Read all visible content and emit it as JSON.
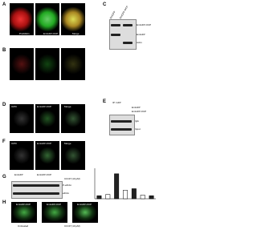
{
  "panels": [
    {
      "letter": "A",
      "labels": [
        "Prohibitin",
        "EmGFP-OCP",
        "Merge"
      ]
    },
    {
      "letter": "B",
      "labels": [
        "Prohibitin",
        "EmGFP-OCP",
        "Merge"
      ]
    },
    {
      "letter": "C",
      "columns": [
        "EmGFP",
        "EmGFP-OCP"
      ],
      "rows": [
        "EmGFP-OCP",
        "EmGFP",
        "Actin"
      ]
    },
    {
      "letter": "D",
      "labels": [
        "ICP0",
        "EmGFP-OCP",
        "Merge"
      ]
    },
    {
      "letter": "E",
      "header": "IP: GFP",
      "columns": [
        "EmGFP",
        "EmGFP-OCP"
      ],
      "rows": [
        "IgG",
        "Input"
      ]
    },
    {
      "letter": "F",
      "labels": [
        "ICP0",
        "EmGFP-OCP",
        "Merge"
      ]
    },
    {
      "letter": "G",
      "groups": [
        "EmGFP",
        "EmGFP-OCP"
      ],
      "treatment": "CCCP (10 µM)",
      "rows": [
        "P-eIF2α",
        "eIF2α"
      ],
      "chart": {
        "values": [
          1,
          1.4,
          8.2,
          2.8,
          3.3,
          1.2,
          1
        ],
        "ylim": [
          0,
          10
        ]
      }
    },
    {
      "letter": "H",
      "labels": [
        "EmGFP-OCP",
        "EmGFP-OCP",
        "EmGFP-OCP"
      ],
      "captions": [
        "Untreated",
        "CCCP (10 µM)"
      ]
    }
  ]
}
